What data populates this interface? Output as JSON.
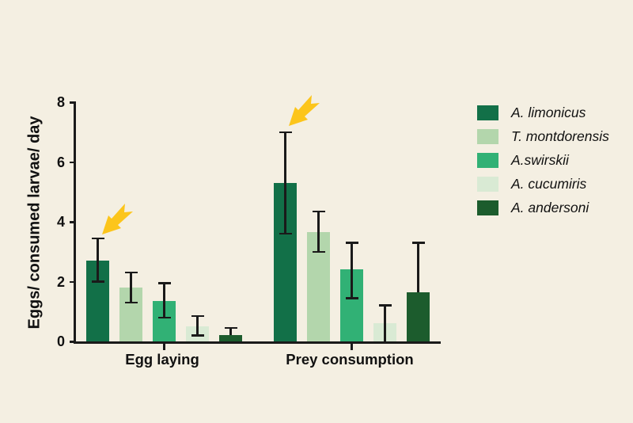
{
  "figure": {
    "background": "#f4efe2",
    "axis_color": "#1a1a1a",
    "arrow_color": "#fcc51b"
  },
  "chart_data": {
    "type": "bar",
    "title": "",
    "xlabel": "",
    "ylabel": "Eggs/ consumed larvae/ day",
    "categories": [
      "Egg laying",
      "Prey consumption"
    ],
    "ylim": [
      0,
      8
    ],
    "yticks": [
      0,
      2,
      4,
      6,
      8
    ],
    "grid": false,
    "legend_position": "right",
    "error_bars": "sd",
    "series": [
      {
        "name": "A. limonicus",
        "color": "#127048",
        "values": [
          2.7,
          5.3
        ],
        "err_up": [
          3.45,
          7.0
        ],
        "err_down": [
          2.0,
          3.6
        ]
      },
      {
        "name": "T. montdorensis",
        "color": "#b3d6ac",
        "values": [
          1.8,
          3.65
        ],
        "err_up": [
          2.3,
          4.35
        ],
        "err_down": [
          1.3,
          3.0
        ]
      },
      {
        "name": "A.swirskii",
        "color": "#31b175",
        "values": [
          1.35,
          2.4
        ],
        "err_up": [
          1.95,
          3.3
        ],
        "err_down": [
          0.8,
          1.45
        ]
      },
      {
        "name": "A. cucumiris",
        "color": "#d9ead4",
        "values": [
          0.5,
          0.6
        ],
        "err_up": [
          0.85,
          1.2
        ],
        "err_down": [
          0.2,
          0
        ],
        "err_down_cap": [
          true,
          false
        ]
      },
      {
        "name": "A. andersoni",
        "color": "#1c5c2d",
        "values": [
          0.22,
          1.65
        ],
        "err_up": [
          0.45,
          3.3
        ],
        "err_down": [
          null,
          null
        ]
      }
    ],
    "annotations": [
      {
        "type": "arrow",
        "target": "A. limonicus - Egg laying bar"
      },
      {
        "type": "arrow",
        "target": "A. limonicus - Prey consumption bar"
      }
    ]
  }
}
